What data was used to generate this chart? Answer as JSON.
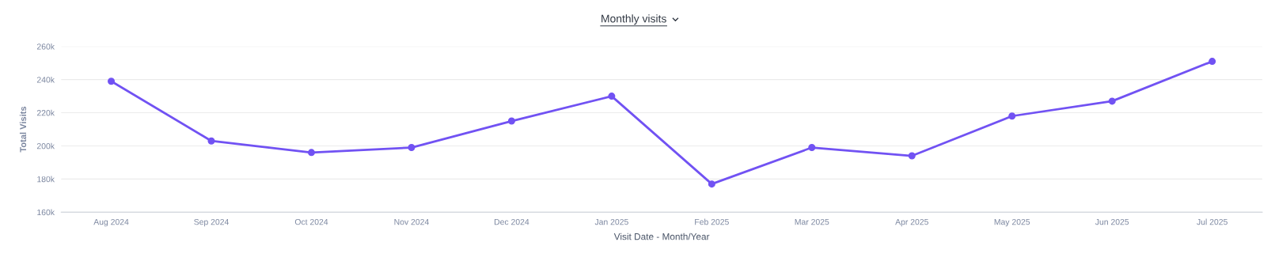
{
  "chart_data": {
    "type": "line",
    "title": "Monthly visits",
    "xlabel": "Visit Date - Month/Year",
    "ylabel": "Total Visits",
    "categories": [
      "Aug 2024",
      "Sep 2024",
      "Oct 2024",
      "Nov 2024",
      "Dec 2024",
      "Jan 2025",
      "Feb 2025",
      "Mar 2025",
      "Apr 2025",
      "May 2025",
      "Jun 2025",
      "Jul 2025"
    ],
    "series": [
      {
        "color": "#7152f3",
        "values": [
          239000,
          203000,
          196000,
          199000,
          215000,
          230000,
          177000,
          199000,
          194000,
          218000,
          227000,
          251000
        ]
      }
    ],
    "ylim": [
      160000,
      260000
    ],
    "yticks": [
      {
        "value": 160000,
        "label": "160k"
      },
      {
        "value": 180000,
        "label": "180k"
      },
      {
        "value": 200000,
        "label": "200k"
      },
      {
        "value": 220000,
        "label": "220k"
      },
      {
        "value": 240000,
        "label": "240k"
      },
      {
        "value": 260000,
        "label": "260k"
      }
    ],
    "grid": "y",
    "legend": false,
    "marker": "circle",
    "line_style": "solid"
  }
}
